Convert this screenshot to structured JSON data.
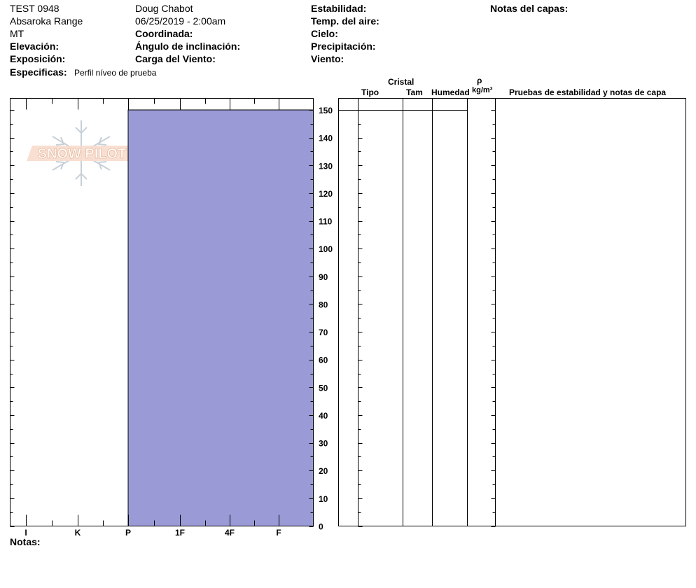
{
  "header": {
    "col1": [
      "TEST 0948",
      "Absaroka Range",
      "MT"
    ],
    "elevation_label": "Elevación:",
    "exposure_label": "Exposición:",
    "specifics_label": "Especificas:",
    "specifics_value": "Perfil níveo de prueba",
    "observer": "Doug Chabot",
    "datetime": "06/25/2019 - 2:00am",
    "coordinate_label": "Coordinada:",
    "slope_label": "Ángulo de inclinación:",
    "wind_load_label": "Carga del Viento:",
    "stability_label": "Estabilidad:",
    "air_temp_label": "Temp. del aire:",
    "sky_label": "Cielo:",
    "precip_label": "Precipitación:",
    "wind_label": "Viento:",
    "layer_notes_label": "Notas del capas:"
  },
  "table_headers": {
    "cristal": "Cristal",
    "tipo": "Tipo",
    "tam": "Tam",
    "humedad": "Humedad",
    "rho": "ρ",
    "density_unit": "kg/m³",
    "stability_notes": "Pruebas de estabilidad y notas de capa"
  },
  "notes_label": "Notas:",
  "logo_text": "SNOW PILOT",
  "colors": {
    "hardness_fill": "#9a9ad6",
    "logo_text": "#f2c9b2",
    "snowflake": "#c8d0d8"
  },
  "chart_data": {
    "type": "bar",
    "title": "",
    "xlabel": "",
    "ylabel": "",
    "hardness_ticks": [
      "I",
      "K",
      "P",
      "1F",
      "4F",
      "F"
    ],
    "ylim": [
      0,
      150
    ],
    "y_ticks": [
      0,
      10,
      20,
      30,
      40,
      50,
      60,
      70,
      80,
      90,
      100,
      110,
      120,
      130,
      140,
      150
    ],
    "layers": [
      {
        "top_cm": 150,
        "bottom_cm": 0,
        "hardness": "P"
      }
    ]
  }
}
